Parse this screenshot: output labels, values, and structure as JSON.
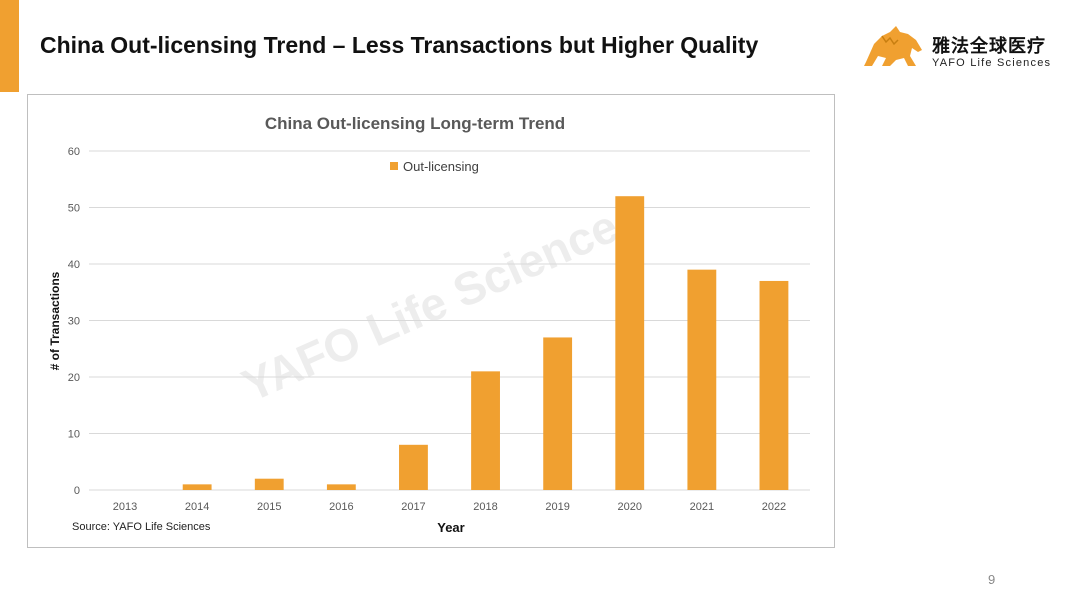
{
  "slide": {
    "title": "China Out-licensing Trend – Less Transactions but Higher Quality",
    "page_number": "9"
  },
  "logo": {
    "cn_name": "雅法全球医疗",
    "en_name": "YAFO Life Sciences"
  },
  "chart_data": {
    "type": "bar",
    "title": "China Out-licensing Long-term Trend",
    "xlabel": "Year",
    "ylabel": "# of Transactions",
    "categories": [
      "2013",
      "2014",
      "2015",
      "2016",
      "2017",
      "2018",
      "2019",
      "2020",
      "2021",
      "2022"
    ],
    "series": [
      {
        "name": "Out-licensing",
        "values": [
          0,
          1,
          2,
          1,
          8,
          21,
          27,
          52,
          39,
          37
        ]
      }
    ],
    "ylim": [
      0,
      60
    ],
    "yticks": [
      0,
      10,
      20,
      30,
      40,
      50,
      60
    ],
    "grid": true,
    "legend_position": "top-center",
    "watermark": "YAFO Life Sciences",
    "source": "Source: YAFO Life Sciences",
    "bar_color": "#F0A030"
  },
  "colors": {
    "accent": "#F0A030",
    "gridline": "#D9D9D9",
    "axis_text": "#595959"
  }
}
